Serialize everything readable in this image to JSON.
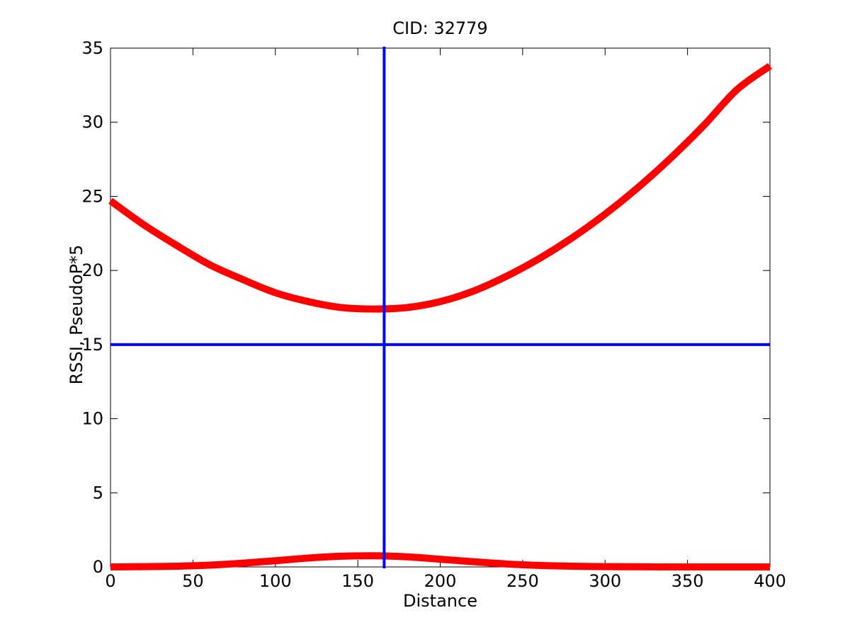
{
  "chart_data": {
    "type": "line",
    "title": "CID: 32779",
    "xlabel": "Distance",
    "ylabel": "RSSI, PseudoP*5",
    "xlim": [
      0,
      400
    ],
    "ylim": [
      0,
      35
    ],
    "xticks": [
      0,
      50,
      100,
      150,
      200,
      250,
      300,
      350,
      400
    ],
    "yticks": [
      0,
      5,
      10,
      15,
      20,
      25,
      30,
      35
    ],
    "grid": false,
    "series": [
      {
        "color": "#ff0000",
        "x": [
          0,
          20,
          40,
          60,
          80,
          100,
          120,
          140,
          160,
          180,
          200,
          220,
          240,
          260,
          280,
          300,
          320,
          340,
          360,
          380,
          400
        ],
        "values": [
          24.7,
          23.1,
          21.7,
          20.4,
          19.4,
          18.5,
          17.9,
          17.5,
          17.4,
          17.5,
          17.9,
          18.6,
          19.6,
          20.8,
          22.2,
          23.8,
          25.6,
          27.6,
          29.8,
          32.2,
          33.8
        ]
      },
      {
        "color": "#ff0000",
        "x": [
          0,
          20,
          40,
          60,
          80,
          100,
          120,
          140,
          160,
          180,
          200,
          220,
          240,
          260,
          280,
          300,
          320,
          340,
          360,
          380,
          400
        ],
        "values": [
          0.0,
          0.02,
          0.05,
          0.12,
          0.25,
          0.42,
          0.6,
          0.72,
          0.75,
          0.68,
          0.52,
          0.35,
          0.2,
          0.1,
          0.05,
          0.02,
          0.01,
          0.0,
          0.0,
          0.0,
          0.0
        ]
      }
    ],
    "reference_lines": [
      {
        "orientation": "vertical",
        "value": 166,
        "color": "#0000ff"
      },
      {
        "orientation": "horizontal",
        "value": 15,
        "color": "#0000ff"
      }
    ]
  }
}
